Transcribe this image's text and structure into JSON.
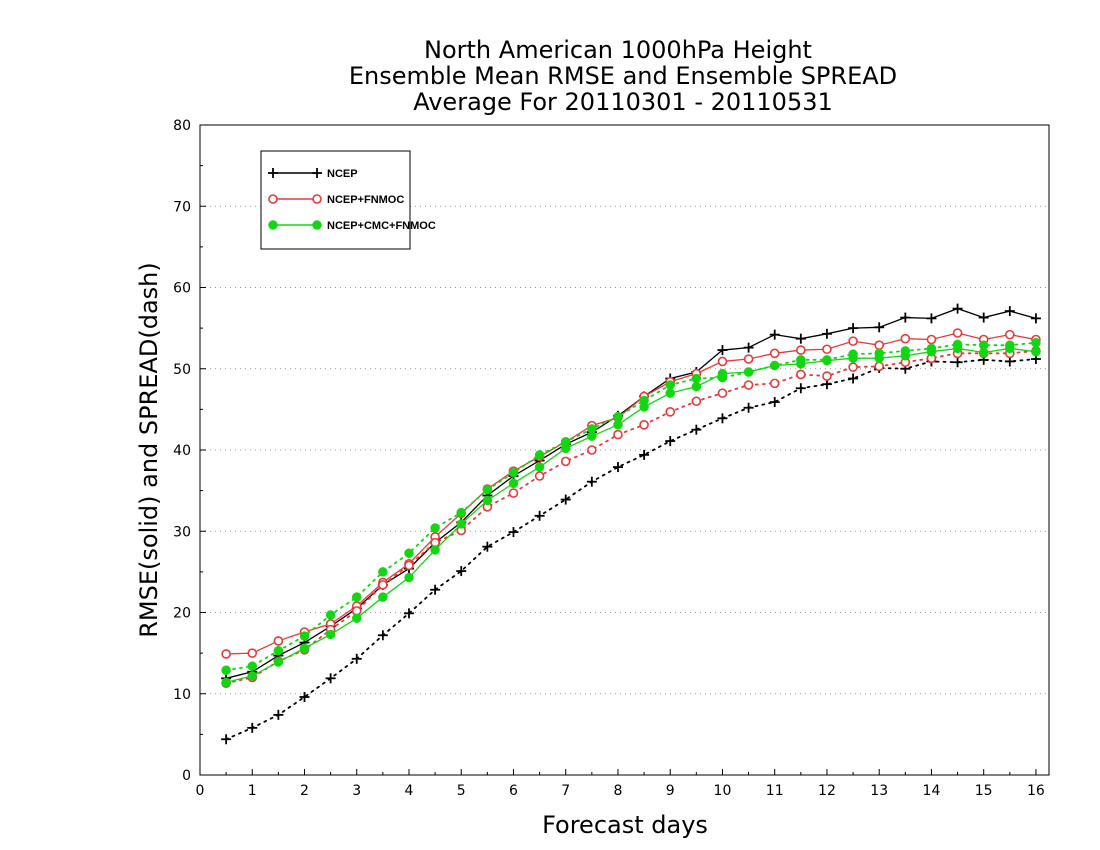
{
  "chart_data": {
    "type": "line",
    "title_lines": [
      "North American 1000hPa Height",
      "Ensemble Mean RMSE and Ensemble SPREAD",
      "Average For 20110301 - 20110531"
    ],
    "xlabel": "Forecast days",
    "ylabel": "RMSE(solid) and SPREAD(dash)",
    "xlim": [
      0,
      16.25
    ],
    "ylim": [
      0,
      80
    ],
    "xticks": [
      0,
      1,
      2,
      3,
      4,
      5,
      6,
      7,
      8,
      9,
      10,
      11,
      12,
      13,
      14,
      15,
      16
    ],
    "yticks": [
      0,
      10,
      20,
      30,
      40,
      50,
      60,
      70,
      80
    ],
    "grid": "horizontal dotted",
    "legend_position": "top-left",
    "x": [
      0.5,
      1,
      1.5,
      2,
      2.5,
      3,
      3.5,
      4,
      4.5,
      5,
      5.5,
      6,
      6.5,
      7,
      7.5,
      8,
      8.5,
      9,
      9.5,
      10,
      10.5,
      11,
      11.5,
      12,
      12.5,
      13,
      13.5,
      14,
      14.5,
      15,
      15.5,
      16
    ],
    "series": [
      {
        "name": "NCEP",
        "metric": "RMSE",
        "line_style": "solid",
        "color": "#000000",
        "marker": "plus",
        "values": [
          11.9,
          12.7,
          14.7,
          16.3,
          18.3,
          20.5,
          23.4,
          25.4,
          28.6,
          31.1,
          34.4,
          36.8,
          38.7,
          40.7,
          42.2,
          44.2,
          46.6,
          48.8,
          49.6,
          52.3,
          52.6,
          54.2,
          53.7,
          54.3,
          55.0,
          55.1,
          56.3,
          56.2,
          57.4,
          56.3,
          57.1,
          56.2
        ]
      },
      {
        "name": "NCEP",
        "metric": "SPREAD",
        "line_style": "dash",
        "color": "#000000",
        "marker": "plus",
        "values": [
          4.4,
          5.8,
          7.4,
          9.6,
          11.9,
          14.3,
          17.2,
          19.9,
          22.8,
          25.1,
          28.1,
          29.9,
          31.9,
          33.9,
          36.1,
          37.9,
          39.4,
          41.1,
          42.5,
          43.9,
          45.2,
          45.9,
          47.6,
          48.1,
          48.8,
          50.1,
          50.0,
          50.9,
          50.8,
          51.1,
          50.9,
          51.2
        ]
      },
      {
        "name": "NCEP+FNMOC",
        "metric": "RMSE",
        "line_style": "solid",
        "color": "#e8393a",
        "marker": "open-circle",
        "values": [
          14.9,
          15.0,
          16.5,
          17.6,
          18.6,
          20.8,
          23.7,
          26.0,
          29.3,
          32.2,
          35.2,
          37.4,
          39.2,
          41.0,
          43.0,
          44.0,
          46.6,
          48.4,
          49.4,
          50.9,
          51.2,
          51.9,
          52.3,
          52.4,
          53.4,
          52.9,
          53.7,
          53.6,
          54.4,
          53.6,
          54.2,
          53.6
        ]
      },
      {
        "name": "NCEP+FNMOC",
        "metric": "SPREAD",
        "line_style": "dash",
        "color": "#e8393a",
        "marker": "open-circle",
        "values": [
          11.3,
          12.0,
          14.0,
          15.4,
          17.9,
          20.2,
          23.4,
          25.8,
          28.6,
          30.1,
          33.0,
          34.7,
          36.8,
          38.6,
          40.0,
          41.9,
          43.1,
          44.7,
          46.0,
          47.0,
          48.0,
          48.2,
          49.3,
          49.1,
          50.2,
          50.3,
          50.8,
          51.3,
          51.9,
          51.9,
          51.9,
          52.2
        ]
      },
      {
        "name": "NCEP+CMC+FNMOC",
        "metric": "RMSE",
        "line_style": "solid",
        "color": "#12d612",
        "marker": "filled-circle",
        "values": [
          11.4,
          12.2,
          13.9,
          15.6,
          17.3,
          19.3,
          21.9,
          24.3,
          27.7,
          30.9,
          33.8,
          35.9,
          37.9,
          40.2,
          41.7,
          43.1,
          45.3,
          47.0,
          47.8,
          49.4,
          49.6,
          50.4,
          50.6,
          51.0,
          51.3,
          51.3,
          51.6,
          52.1,
          52.5,
          52.0,
          52.5,
          52.1
        ]
      },
      {
        "name": "NCEP+CMC+FNMOC",
        "metric": "SPREAD",
        "line_style": "dash",
        "color": "#12d612",
        "marker": "filled-circle",
        "values": [
          12.9,
          13.4,
          15.3,
          17.1,
          19.7,
          21.9,
          25.0,
          27.3,
          30.4,
          32.3,
          35.1,
          37.2,
          39.4,
          41.0,
          42.6,
          44.1,
          46.1,
          48.0,
          48.8,
          48.9,
          49.6,
          50.4,
          51.1,
          51.1,
          51.8,
          51.9,
          52.2,
          52.5,
          53.0,
          52.9,
          52.9,
          53.2
        ]
      }
    ],
    "legend": [
      {
        "label": "NCEP",
        "color": "#000000",
        "marker": "plus"
      },
      {
        "label": "NCEP+FNMOC",
        "color": "#e8393a",
        "marker": "open-circle"
      },
      {
        "label": "NCEP+CMC+FNMOC",
        "color": "#12d612",
        "marker": "filled-circle"
      }
    ]
  }
}
